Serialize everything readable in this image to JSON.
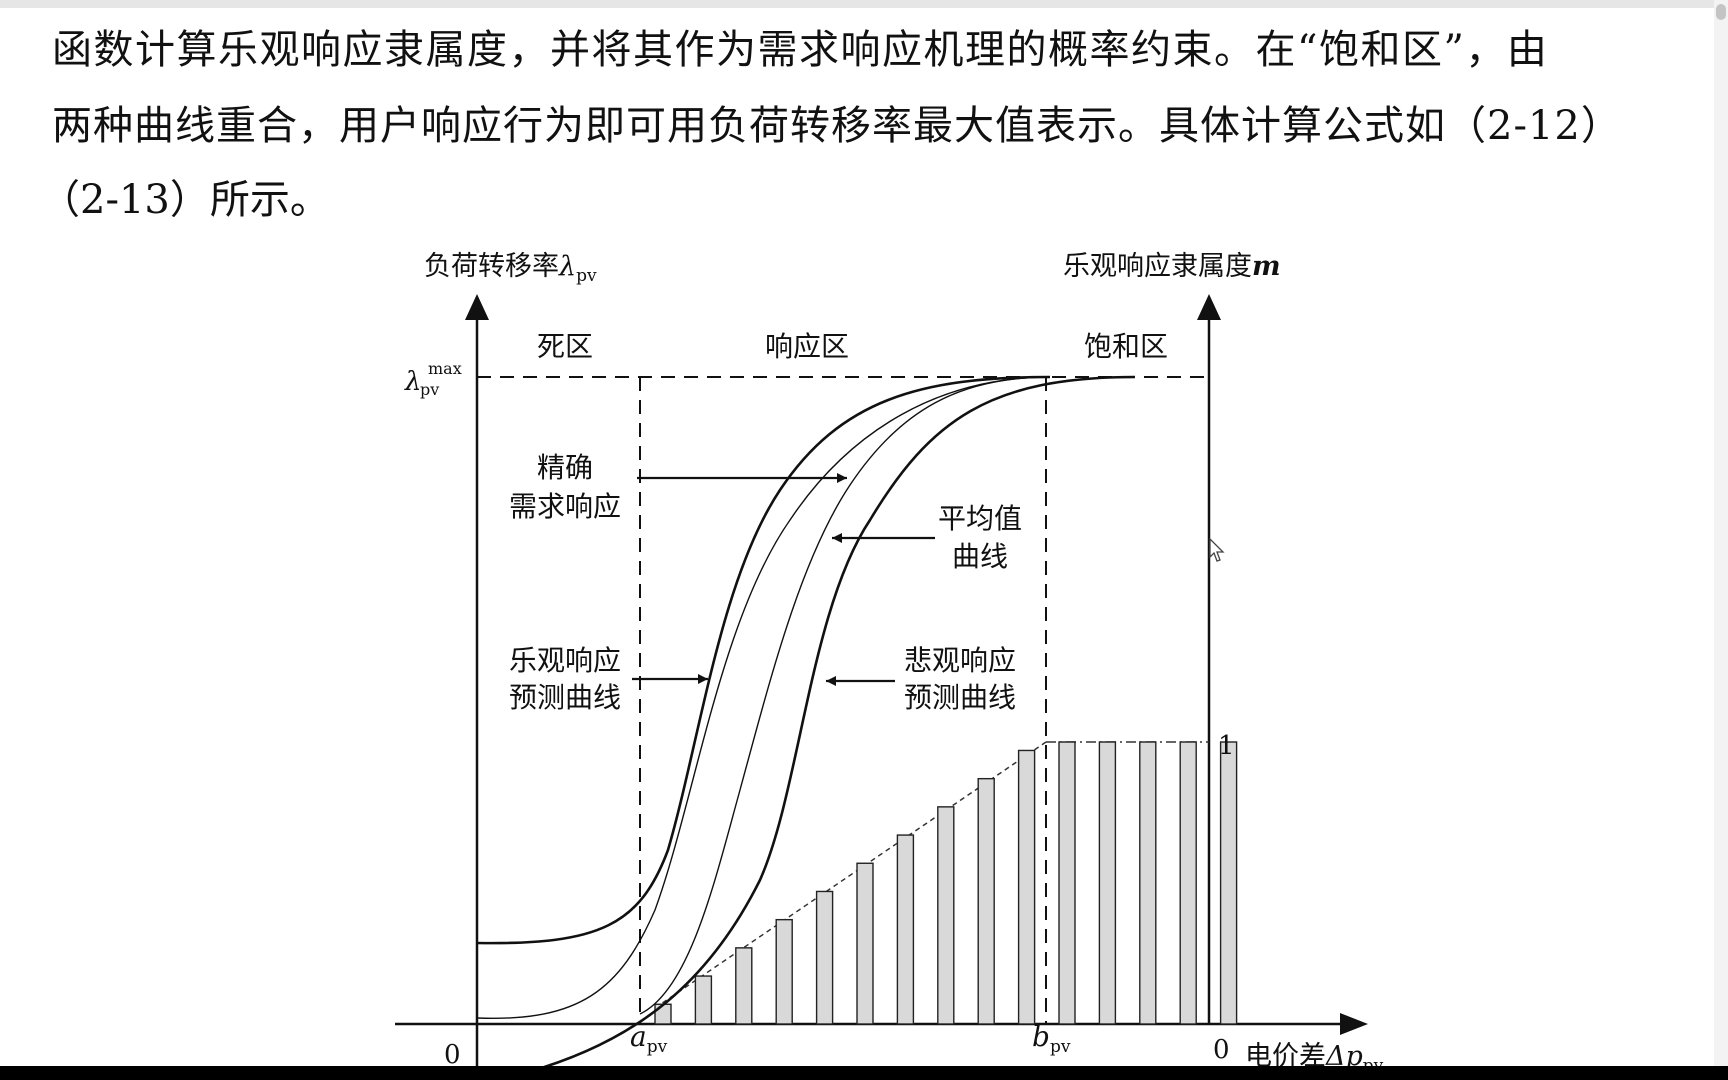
{
  "document": {
    "paragraph": [
      "函数计算乐观响应隶属度，并将其作为需求响应机理的概率约束。在“饱和区”，由",
      "两种曲线重合，用户响应行为即可用负荷转移率最大值表示。具体计算公式如（2-12）",
      "（2-13）所示。"
    ]
  },
  "figure": {
    "left_axis_title": "负荷转移率",
    "left_axis_symbol": "λ",
    "left_axis_sub": "pv",
    "right_axis_title": "乐观响应隶属度",
    "right_axis_symbol": "m",
    "ymax_symbol": "λ",
    "ymax_sub": "pv",
    "ymax_sup": "max",
    "zones": [
      "死区",
      "响应区",
      "饱和区"
    ],
    "labels": {
      "precise_1": "精确",
      "precise_2": "需求响应",
      "mean_1": "平均值",
      "mean_2": "曲线",
      "optimistic_1": "乐观响应",
      "optimistic_2": "预测曲线",
      "pessimistic_1": "悲观响应",
      "pessimistic_2": "预测曲线"
    },
    "origin_left": "0",
    "origin_right": "0",
    "right_tick_one": "1",
    "a_symbol": "a",
    "a_sub": "pv",
    "b_symbol": "b",
    "b_sub": "pv",
    "x_axis_title": "电价差",
    "x_axis_symbol": "Δp",
    "x_axis_sub": "pv",
    "membership_bars": [
      0.07,
      0.17,
      0.27,
      0.37,
      0.47,
      0.57,
      0.67,
      0.77,
      0.87,
      0.97,
      1,
      1,
      1,
      1,
      1
    ]
  }
}
